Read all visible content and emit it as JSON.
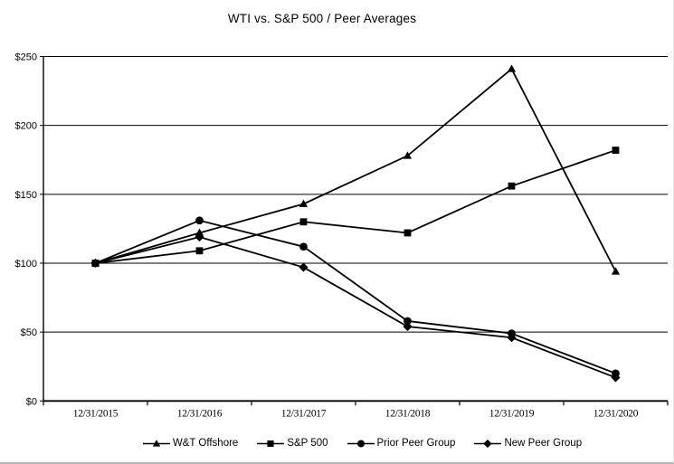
{
  "title": "WTI vs. S&P 500 / Peer Averages",
  "chart_data": {
    "type": "line",
    "categories": [
      "12/31/2015",
      "12/31/2016",
      "12/31/2017",
      "12/31/2018",
      "12/31/2019",
      "12/31/2020"
    ],
    "series": [
      {
        "name": "W&T Offshore",
        "marker": "triangle",
        "values": [
          100,
          122,
          143,
          178,
          241,
          94
        ]
      },
      {
        "name": "S&P 500",
        "marker": "square",
        "values": [
          100,
          109,
          130,
          122,
          156,
          182
        ]
      },
      {
        "name": "Prior Peer Group",
        "marker": "circle",
        "values": [
          100,
          131,
          112,
          58,
          49,
          20
        ]
      },
      {
        "name": "New Peer Group",
        "marker": "diamond",
        "values": [
          100,
          119,
          97,
          54,
          46,
          17
        ]
      }
    ],
    "ylim": [
      0,
      250
    ],
    "ytick_step": 50,
    "ytick_labels": [
      "$0",
      "$50",
      "$100",
      "$150",
      "$200",
      "$250"
    ],
    "grid": "horizontal",
    "line_color": "#000000",
    "background_color": "#ffffff",
    "legend_position": "bottom"
  }
}
